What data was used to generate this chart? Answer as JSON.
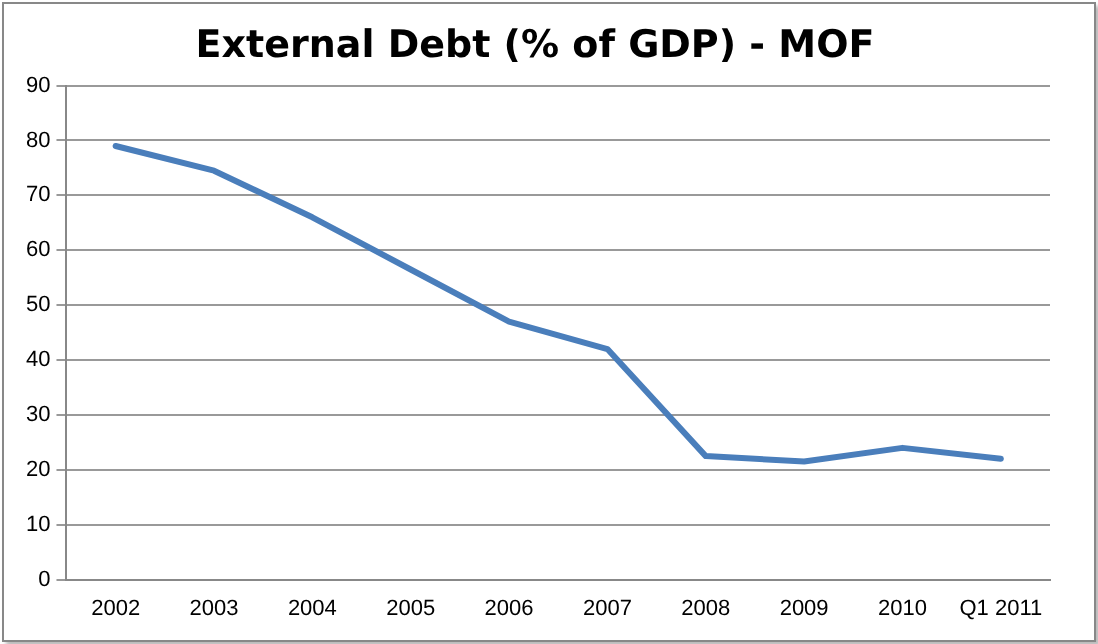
{
  "chart_data": {
    "type": "line",
    "title": "External Debt (% of GDP) - MOF",
    "categories": [
      "2002",
      "2003",
      "2004",
      "2005",
      "2006",
      "2007",
      "2008",
      "2009",
      "2010",
      "Q1 2011"
    ],
    "series": [
      {
        "color": "#4a7ebb",
        "values": [
          79,
          74.5,
          66,
          56.5,
          47,
          42,
          22.5,
          21.5,
          24,
          22
        ]
      }
    ],
    "ylim": [
      0,
      90
    ],
    "yticks": [
      0,
      10,
      20,
      30,
      40,
      50,
      60,
      70,
      80,
      90
    ],
    "grid": "y",
    "legend": false,
    "marker": "none",
    "line_style": "solid"
  }
}
